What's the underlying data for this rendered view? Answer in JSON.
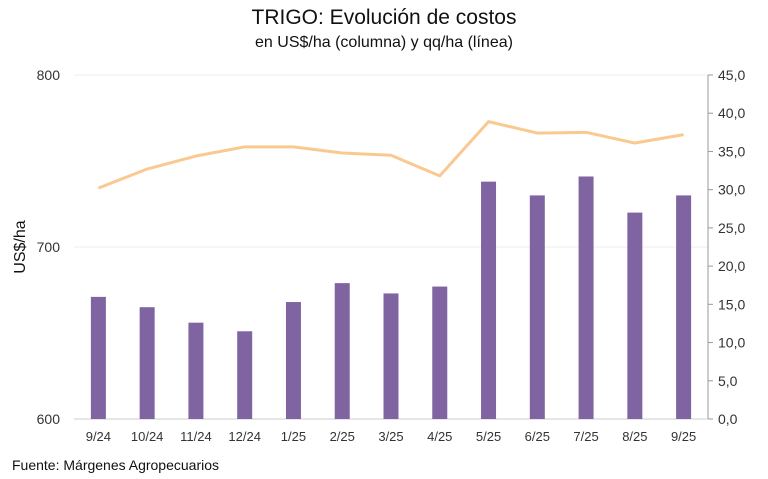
{
  "chart_data": {
    "type": "bar",
    "title": "TRIGO: Evolución de costos",
    "subtitle": "en US$/ha (columna) y qq/ha (línea)",
    "categories": [
      "9/24",
      "10/24",
      "11/24",
      "12/24",
      "1/25",
      "2/25",
      "3/25",
      "4/25",
      "5/25",
      "6/25",
      "7/25",
      "8/25",
      "9/25"
    ],
    "series": [
      {
        "name": "US$/ha",
        "type": "bar",
        "axis": "left",
        "color": "#8064a2",
        "values": [
          671,
          665,
          656,
          651,
          668,
          679,
          673,
          677,
          738,
          730,
          741,
          720,
          730
        ]
      },
      {
        "name": "qq/ha",
        "type": "line",
        "axis": "right",
        "color": "#fac990",
        "values": [
          30.2,
          32.7,
          34.4,
          35.6,
          35.6,
          34.8,
          34.5,
          31.8,
          38.9,
          37.4,
          37.5,
          36.1,
          37.2
        ]
      }
    ],
    "ylabel": "US$/ha",
    "ylim": [
      600,
      800
    ],
    "yticks": [
      "600",
      "700",
      "800"
    ],
    "y2lim": [
      0,
      45
    ],
    "y2ticks": [
      "0,0",
      "5,0",
      "10,0",
      "15,0",
      "20,0",
      "25,0",
      "30,0",
      "35,0",
      "40,0",
      "45,0"
    ],
    "grid": true
  },
  "source": "Fuente: Márgenes Agropecuarios"
}
